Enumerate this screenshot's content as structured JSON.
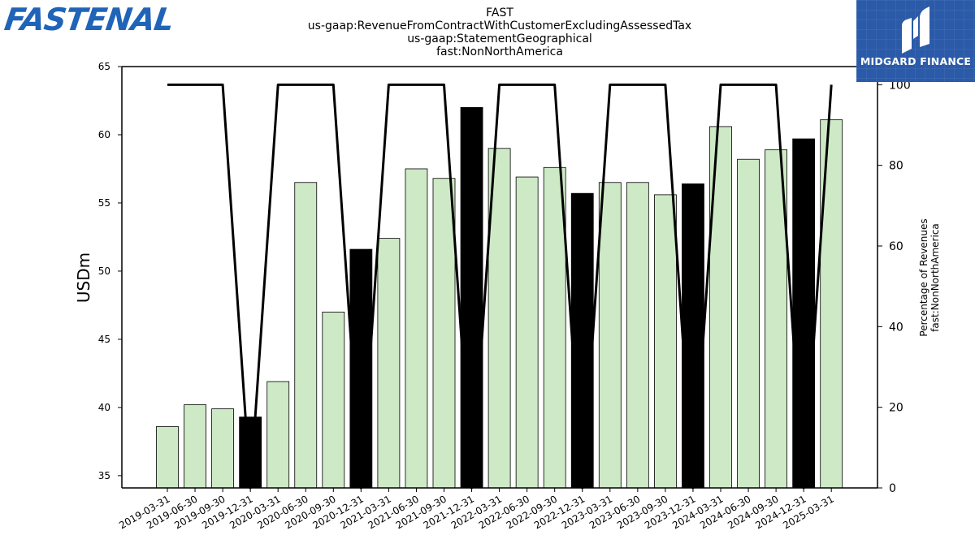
{
  "header": {
    "brand_logo_text": "FASTENAL",
    "badge_text": "MIDGARD FINANCE"
  },
  "chart_data": {
    "type": "bar",
    "title_lines": [
      "FAST",
      "us-gaap:RevenueFromContractWithCustomerExcludingAssessedTax",
      "us-gaap:StatementGeographical",
      "fast:NonNorthAmerica"
    ],
    "ylabel": "USDm",
    "y2label_lines": [
      "Percentage of Revenues",
      "fast:NonNorthAmerica"
    ],
    "categories": [
      "2019-03-31",
      "2019-06-30",
      "2019-09-30",
      "2019-12-31",
      "2020-03-31",
      "2020-06-30",
      "2020-09-30",
      "2020-12-31",
      "2021-03-31",
      "2021-06-30",
      "2021-09-30",
      "2021-12-31",
      "2022-03-31",
      "2022-06-30",
      "2022-09-30",
      "2022-12-31",
      "2023-03-31",
      "2023-06-30",
      "2023-09-30",
      "2023-12-31",
      "2024-03-31",
      "2024-06-30",
      "2024-09-30",
      "2024-12-31",
      "2025-03-31"
    ],
    "values": [
      38.6,
      40.2,
      39.9,
      39.3,
      41.9,
      56.5,
      47.0,
      51.6,
      52.4,
      57.5,
      56.8,
      62.0,
      59.0,
      56.9,
      57.6,
      55.7,
      56.5,
      56.5,
      55.6,
      56.4,
      60.6,
      58.2,
      58.9,
      59.7,
      61.1
    ],
    "highlight": [
      false,
      false,
      false,
      true,
      false,
      false,
      false,
      true,
      false,
      false,
      false,
      true,
      false,
      false,
      false,
      true,
      false,
      false,
      false,
      true,
      false,
      false,
      false,
      true,
      false
    ],
    "series_line": [
      100,
      100,
      100,
      0,
      100,
      100,
      100,
      0,
      100,
      100,
      100,
      0,
      100,
      100,
      100,
      0,
      100,
      100,
      100,
      0,
      100,
      100,
      100,
      0,
      100
    ],
    "ylim": [
      34.1,
      65.0
    ],
    "yticks": [
      35,
      40,
      45,
      50,
      55,
      60,
      65
    ],
    "y2lim": [
      0,
      104.5
    ],
    "y2ticks": [
      0,
      20,
      40,
      60,
      80,
      100
    ],
    "colors": {
      "bar": "#cde9c5",
      "bar_highlight": "#000000",
      "bar_edge": "#000000",
      "line": "#000000"
    }
  }
}
